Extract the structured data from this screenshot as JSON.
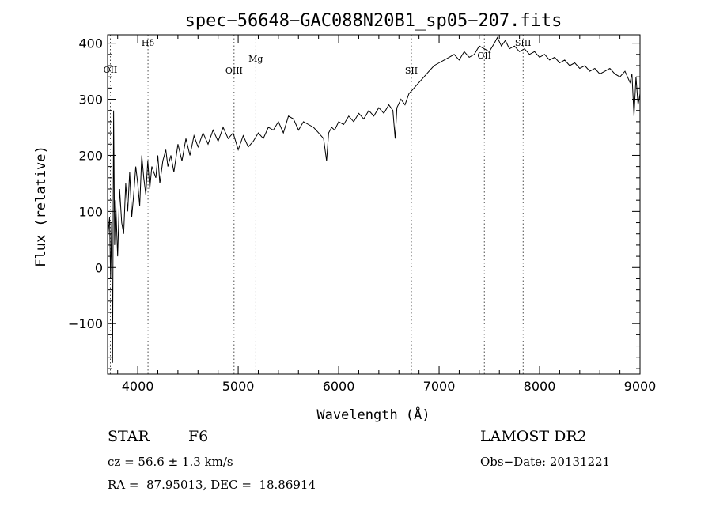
{
  "chart_data": {
    "type": "line",
    "title": "spec−56648−GAC088N20B1_sp05−207.fits",
    "xlabel": "Wavelength (Å)",
    "ylabel": "Flux (relative)",
    "xlim": [
      3700,
      9000
    ],
    "ylim": [
      -190,
      415
    ],
    "x_ticks": [
      4000,
      5000,
      6000,
      7000,
      8000,
      9000
    ],
    "x_tick_labels": [
      "4000",
      "5000",
      "6000",
      "7000",
      "8000",
      "9000"
    ],
    "y_ticks": [
      -100,
      0,
      100,
      200,
      300,
      400
    ],
    "y_tick_labels": [
      "−100",
      "0",
      "100",
      "200",
      "300",
      "400"
    ],
    "grid": false,
    "series": [
      {
        "color": "#000000",
        "x": [
          3700,
          3720,
          3730,
          3740,
          3750,
          3760,
          3770,
          3780,
          3800,
          3820,
          3840,
          3860,
          3880,
          3900,
          3920,
          3940,
          3960,
          3980,
          4000,
          4020,
          4040,
          4060,
          4080,
          4100,
          4120,
          4140,
          4160,
          4180,
          4200,
          4220,
          4250,
          4280,
          4300,
          4330,
          4360,
          4400,
          4440,
          4480,
          4520,
          4560,
          4600,
          4650,
          4700,
          4750,
          4800,
          4850,
          4900,
          4950,
          5000,
          5050,
          5100,
          5150,
          5200,
          5250,
          5300,
          5350,
          5400,
          5450,
          5500,
          5550,
          5600,
          5650,
          5700,
          5750,
          5800,
          5850,
          5880,
          5900,
          5930,
          5960,
          6000,
          6050,
          6100,
          6150,
          6200,
          6250,
          6300,
          6350,
          6400,
          6450,
          6500,
          6540,
          6563,
          6580,
          6620,
          6660,
          6700,
          6750,
          6800,
          6850,
          6900,
          6950,
          7000,
          7050,
          7100,
          7150,
          7200,
          7250,
          7300,
          7350,
          7400,
          7450,
          7500,
          7550,
          7580,
          7620,
          7660,
          7700,
          7750,
          7800,
          7850,
          7900,
          7950,
          8000,
          8050,
          8100,
          8150,
          8200,
          8250,
          8300,
          8350,
          8400,
          8450,
          8500,
          8550,
          8600,
          8650,
          8700,
          8750,
          8800,
          8850,
          8900,
          8920,
          8940,
          8960,
          8980,
          9000
        ],
        "y": [
          50,
          90,
          -20,
          80,
          -170,
          280,
          40,
          120,
          20,
          140,
          80,
          60,
          150,
          100,
          170,
          90,
          130,
          180,
          150,
          110,
          200,
          160,
          130,
          190,
          140,
          180,
          170,
          160,
          200,
          150,
          190,
          210,
          180,
          200,
          170,
          220,
          190,
          230,
          200,
          235,
          215,
          240,
          220,
          245,
          225,
          250,
          230,
          240,
          210,
          235,
          215,
          225,
          240,
          230,
          250,
          245,
          260,
          240,
          270,
          265,
          245,
          260,
          255,
          250,
          240,
          230,
          190,
          240,
          250,
          245,
          260,
          255,
          270,
          260,
          275,
          265,
          280,
          270,
          285,
          275,
          290,
          280,
          230,
          285,
          300,
          290,
          310,
          320,
          330,
          340,
          350,
          360,
          365,
          370,
          375,
          380,
          370,
          385,
          375,
          380,
          395,
          390,
          385,
          400,
          410,
          395,
          405,
          390,
          395,
          385,
          390,
          380,
          385,
          375,
          380,
          370,
          375,
          365,
          370,
          360,
          365,
          355,
          360,
          350,
          355,
          345,
          350,
          355,
          345,
          340,
          350,
          330,
          345,
          270,
          340,
          290,
          310
        ]
      }
    ],
    "annotations": [
      {
        "label": "OII",
        "x": 3727
      },
      {
        "label": "Hδ",
        "x": 4102
      },
      {
        "label": "OIII",
        "x": 4959
      },
      {
        "label": "Mg",
        "x": 5175
      },
      {
        "label": "SII",
        "x": 6724
      },
      {
        "label": "OII",
        "x": 7450
      },
      {
        "label": "SIII",
        "x": 7836
      }
    ]
  },
  "footer": {
    "object_class": "STAR",
    "subclass": "F6",
    "survey": "LAMOST DR2",
    "redshift": "cz = 56.6 ± 1.3 km/s",
    "obs_date": "Obs−Date: 20131221",
    "coordinates": "RA =  87.95013, DEC =  18.86914"
  }
}
